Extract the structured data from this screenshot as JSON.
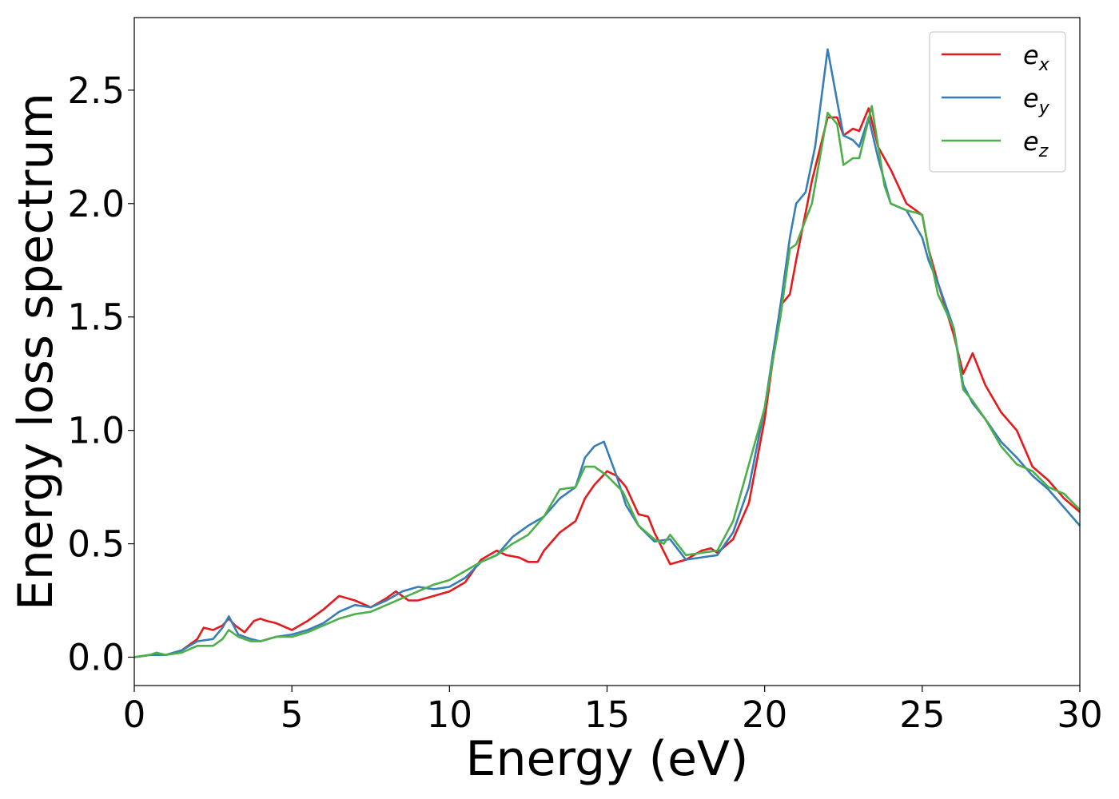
{
  "chart_data": {
    "type": "line",
    "title": "",
    "xlabel": "Energy (eV)",
    "ylabel": "Energy loss spectrum",
    "xlim": [
      0,
      30
    ],
    "ylim": [
      -0.125,
      2.82
    ],
    "xticks": [
      0,
      5,
      10,
      15,
      20,
      25,
      30
    ],
    "xtick_labels": [
      "0",
      "5",
      "10",
      "15",
      "20",
      "25",
      "30"
    ],
    "yticks": [
      0.0,
      0.5,
      1.0,
      1.5,
      2.0,
      2.5
    ],
    "ytick_labels": [
      "0.0",
      "0.5",
      "1.0",
      "1.5",
      "2.0",
      "2.5"
    ],
    "grid": false,
    "legend_position": "top-right",
    "series": [
      {
        "name": "e_x",
        "legend_base": "e",
        "legend_sub": "x",
        "color": "#e41a1c",
        "points": [
          [
            0,
            0
          ],
          [
            0.5,
            0.01
          ],
          [
            1,
            0.01
          ],
          [
            1.5,
            0.03
          ],
          [
            2,
            0.08
          ],
          [
            2.2,
            0.13
          ],
          [
            2.5,
            0.12
          ],
          [
            2.8,
            0.14
          ],
          [
            3,
            0.17
          ],
          [
            3.2,
            0.14
          ],
          [
            3.5,
            0.11
          ],
          [
            3.8,
            0.16
          ],
          [
            4,
            0.17
          ],
          [
            4.2,
            0.16
          ],
          [
            4.5,
            0.15
          ],
          [
            5,
            0.12
          ],
          [
            5.5,
            0.16
          ],
          [
            6,
            0.21
          ],
          [
            6.5,
            0.27
          ],
          [
            7,
            0.25
          ],
          [
            7.5,
            0.22
          ],
          [
            8,
            0.26
          ],
          [
            8.3,
            0.29
          ],
          [
            8.7,
            0.25
          ],
          [
            9,
            0.25
          ],
          [
            9.5,
            0.27
          ],
          [
            10,
            0.29
          ],
          [
            10.5,
            0.33
          ],
          [
            11,
            0.43
          ],
          [
            11.5,
            0.47
          ],
          [
            11.8,
            0.45
          ],
          [
            12.2,
            0.44
          ],
          [
            12.5,
            0.42
          ],
          [
            12.8,
            0.42
          ],
          [
            13,
            0.47
          ],
          [
            13.5,
            0.55
          ],
          [
            14,
            0.6
          ],
          [
            14.3,
            0.7
          ],
          [
            14.6,
            0.76
          ],
          [
            15,
            0.82
          ],
          [
            15.3,
            0.8
          ],
          [
            15.6,
            0.75
          ],
          [
            16,
            0.63
          ],
          [
            16.3,
            0.62
          ],
          [
            16.5,
            0.55
          ],
          [
            17,
            0.41
          ],
          [
            17.5,
            0.43
          ],
          [
            18,
            0.47
          ],
          [
            18.3,
            0.48
          ],
          [
            18.5,
            0.46
          ],
          [
            19,
            0.52
          ],
          [
            19.5,
            0.68
          ],
          [
            20,
            1.05
          ],
          [
            20.5,
            1.55
          ],
          [
            20.8,
            1.6
          ],
          [
            21,
            1.75
          ],
          [
            21.5,
            2.1
          ],
          [
            22,
            2.38
          ],
          [
            22.3,
            2.38
          ],
          [
            22.5,
            2.3
          ],
          [
            22.8,
            2.33
          ],
          [
            23,
            2.32
          ],
          [
            23.3,
            2.42
          ],
          [
            23.6,
            2.25
          ],
          [
            24,
            2.15
          ],
          [
            24.5,
            2.0
          ],
          [
            25,
            1.95
          ],
          [
            25.2,
            1.8
          ],
          [
            25.5,
            1.65
          ],
          [
            26,
            1.42
          ],
          [
            26.3,
            1.25
          ],
          [
            26.6,
            1.34
          ],
          [
            27,
            1.2
          ],
          [
            27.5,
            1.08
          ],
          [
            28,
            1.0
          ],
          [
            28.5,
            0.84
          ],
          [
            29,
            0.78
          ],
          [
            29.5,
            0.7
          ],
          [
            30,
            0.64
          ]
        ]
      },
      {
        "name": "e_y",
        "legend_base": "e",
        "legend_sub": "y",
        "color": "#377eb8",
        "points": [
          [
            0,
            0
          ],
          [
            0.5,
            0.01
          ],
          [
            1,
            0.01
          ],
          [
            1.5,
            0.03
          ],
          [
            2,
            0.07
          ],
          [
            2.5,
            0.08
          ],
          [
            2.8,
            0.13
          ],
          [
            3,
            0.18
          ],
          [
            3.3,
            0.1
          ],
          [
            3.7,
            0.08
          ],
          [
            4,
            0.07
          ],
          [
            4.5,
            0.09
          ],
          [
            5,
            0.1
          ],
          [
            5.5,
            0.12
          ],
          [
            6,
            0.15
          ],
          [
            6.5,
            0.2
          ],
          [
            7,
            0.23
          ],
          [
            7.5,
            0.22
          ],
          [
            8,
            0.25
          ],
          [
            8.5,
            0.29
          ],
          [
            9,
            0.31
          ],
          [
            9.5,
            0.3
          ],
          [
            10,
            0.31
          ],
          [
            10.5,
            0.35
          ],
          [
            11,
            0.42
          ],
          [
            11.5,
            0.45
          ],
          [
            12,
            0.53
          ],
          [
            12.5,
            0.58
          ],
          [
            13,
            0.62
          ],
          [
            13.5,
            0.7
          ],
          [
            14,
            0.75
          ],
          [
            14.3,
            0.88
          ],
          [
            14.6,
            0.93
          ],
          [
            14.9,
            0.95
          ],
          [
            15.3,
            0.8
          ],
          [
            15.6,
            0.67
          ],
          [
            16,
            0.58
          ],
          [
            16.5,
            0.51
          ],
          [
            17,
            0.52
          ],
          [
            17.5,
            0.43
          ],
          [
            18,
            0.44
          ],
          [
            18.5,
            0.45
          ],
          [
            19,
            0.55
          ],
          [
            19.5,
            0.75
          ],
          [
            20,
            1.1
          ],
          [
            20.5,
            1.55
          ],
          [
            20.8,
            1.85
          ],
          [
            21,
            2.0
          ],
          [
            21.3,
            2.05
          ],
          [
            21.6,
            2.25
          ],
          [
            22,
            2.68
          ],
          [
            22.3,
            2.45
          ],
          [
            22.5,
            2.3
          ],
          [
            22.8,
            2.28
          ],
          [
            23,
            2.25
          ],
          [
            23.3,
            2.38
          ],
          [
            23.6,
            2.2
          ],
          [
            24,
            2.0
          ],
          [
            24.5,
            1.97
          ],
          [
            25,
            1.85
          ],
          [
            25.2,
            1.75
          ],
          [
            25.5,
            1.65
          ],
          [
            26,
            1.45
          ],
          [
            26.3,
            1.2
          ],
          [
            26.6,
            1.12
          ],
          [
            27,
            1.05
          ],
          [
            27.5,
            0.95
          ],
          [
            28,
            0.88
          ],
          [
            28.5,
            0.8
          ],
          [
            29,
            0.74
          ],
          [
            29.5,
            0.66
          ],
          [
            30,
            0.58
          ]
        ]
      },
      {
        "name": "e_z",
        "legend_base": "e",
        "legend_sub": "z",
        "color": "#4daf4a",
        "points": [
          [
            0,
            0
          ],
          [
            0.5,
            0.01
          ],
          [
            0.7,
            0.02
          ],
          [
            1,
            0.01
          ],
          [
            1.5,
            0.02
          ],
          [
            2,
            0.05
          ],
          [
            2.5,
            0.05
          ],
          [
            2.8,
            0.08
          ],
          [
            3,
            0.12
          ],
          [
            3.3,
            0.09
          ],
          [
            3.7,
            0.07
          ],
          [
            4,
            0.07
          ],
          [
            4.5,
            0.09
          ],
          [
            5,
            0.09
          ],
          [
            5.5,
            0.11
          ],
          [
            6,
            0.14
          ],
          [
            6.5,
            0.17
          ],
          [
            7,
            0.19
          ],
          [
            7.5,
            0.2
          ],
          [
            8,
            0.23
          ],
          [
            8.5,
            0.26
          ],
          [
            9,
            0.29
          ],
          [
            9.5,
            0.32
          ],
          [
            10,
            0.34
          ],
          [
            10.5,
            0.38
          ],
          [
            11,
            0.42
          ],
          [
            11.5,
            0.45
          ],
          [
            12,
            0.5
          ],
          [
            12.5,
            0.54
          ],
          [
            13,
            0.62
          ],
          [
            13.5,
            0.74
          ],
          [
            14,
            0.75
          ],
          [
            14.3,
            0.84
          ],
          [
            14.6,
            0.84
          ],
          [
            15,
            0.8
          ],
          [
            15.5,
            0.73
          ],
          [
            16,
            0.58
          ],
          [
            16.5,
            0.52
          ],
          [
            16.8,
            0.5
          ],
          [
            17,
            0.54
          ],
          [
            17.5,
            0.45
          ],
          [
            18,
            0.46
          ],
          [
            18.5,
            0.47
          ],
          [
            19,
            0.6
          ],
          [
            19.5,
            0.85
          ],
          [
            20,
            1.1
          ],
          [
            20.5,
            1.5
          ],
          [
            20.8,
            1.8
          ],
          [
            21,
            1.82
          ],
          [
            21.5,
            2.0
          ],
          [
            22,
            2.4
          ],
          [
            22.3,
            2.35
          ],
          [
            22.5,
            2.17
          ],
          [
            22.8,
            2.2
          ],
          [
            23,
            2.2
          ],
          [
            23.4,
            2.43
          ],
          [
            23.8,
            2.08
          ],
          [
            24,
            2.0
          ],
          [
            24.5,
            1.97
          ],
          [
            24.8,
            1.96
          ],
          [
            25,
            1.95
          ],
          [
            25.2,
            1.8
          ],
          [
            25.5,
            1.6
          ],
          [
            26,
            1.45
          ],
          [
            26.3,
            1.18
          ],
          [
            26.6,
            1.13
          ],
          [
            27,
            1.05
          ],
          [
            27.5,
            0.93
          ],
          [
            28,
            0.85
          ],
          [
            28.5,
            0.82
          ],
          [
            29,
            0.75
          ],
          [
            29.5,
            0.72
          ],
          [
            30,
            0.65
          ]
        ]
      }
    ]
  }
}
